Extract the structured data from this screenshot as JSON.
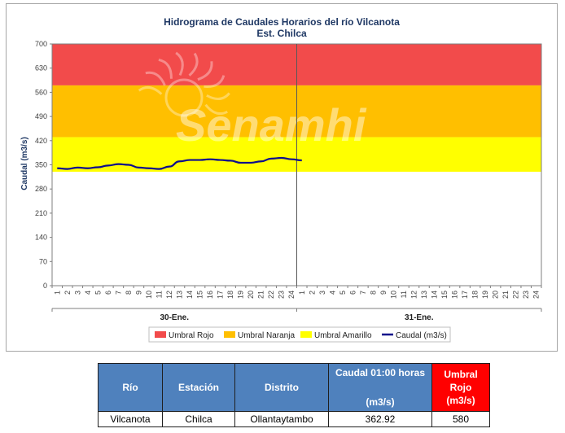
{
  "chart_data": {
    "type": "line",
    "title": "Hidrograma de Caudales Horarios del río Vilcanota",
    "subtitle": "Est. Chilca",
    "ylabel": "Caudal  (m3/s)",
    "ylim": [
      0,
      700
    ],
    "yticks": [
      0,
      70,
      140,
      210,
      280,
      350,
      420,
      490,
      560,
      630,
      700
    ],
    "hour_labels": [
      "1",
      "2",
      "3",
      "4",
      "5",
      "6",
      "7",
      "8",
      "9",
      "10",
      "11",
      "12",
      "13",
      "14",
      "15",
      "16",
      "17",
      "18",
      "19",
      "20",
      "21",
      "22",
      "23",
      "24"
    ],
    "days": [
      "30-Ene.",
      "31-Ene."
    ],
    "watermark": "Senamhi",
    "thresholds": [
      {
        "name": "Umbral Rojo",
        "from": 580,
        "to": 700,
        "color": "#f24b4b"
      },
      {
        "name": "Umbral Naranja",
        "from": 430,
        "to": 580,
        "color": "#ffbf00"
      },
      {
        "name": "Umbral Amarillo",
        "from": 330,
        "to": 430,
        "color": "#ffff00"
      }
    ],
    "series": [
      {
        "name": "Caudal (m3/s)",
        "color": "#0d0d8c",
        "values": [
          340,
          338,
          342,
          340,
          343,
          348,
          352,
          350,
          342,
          340,
          338,
          345,
          360,
          364,
          364,
          366,
          364,
          362,
          356,
          356,
          360,
          368,
          370,
          366,
          362.92
        ]
      }
    ],
    "legend_position": "bottom",
    "grid": false
  },
  "table": {
    "headers": {
      "rio": "Río",
      "estacion": "Estación",
      "distrito": "Distrito",
      "caudal_line1": "Caudal 01:00 horas",
      "caudal_line2": "(m3/s)",
      "umbral_line1": "Umbral",
      "umbral_line2": "Rojo",
      "umbral_line3": "(m3/s)"
    },
    "row": {
      "rio": "Vilcanota",
      "estacion": "Chilca",
      "distrito": "Ollantaytambo",
      "caudal": "362.92",
      "umbral": "580"
    }
  }
}
